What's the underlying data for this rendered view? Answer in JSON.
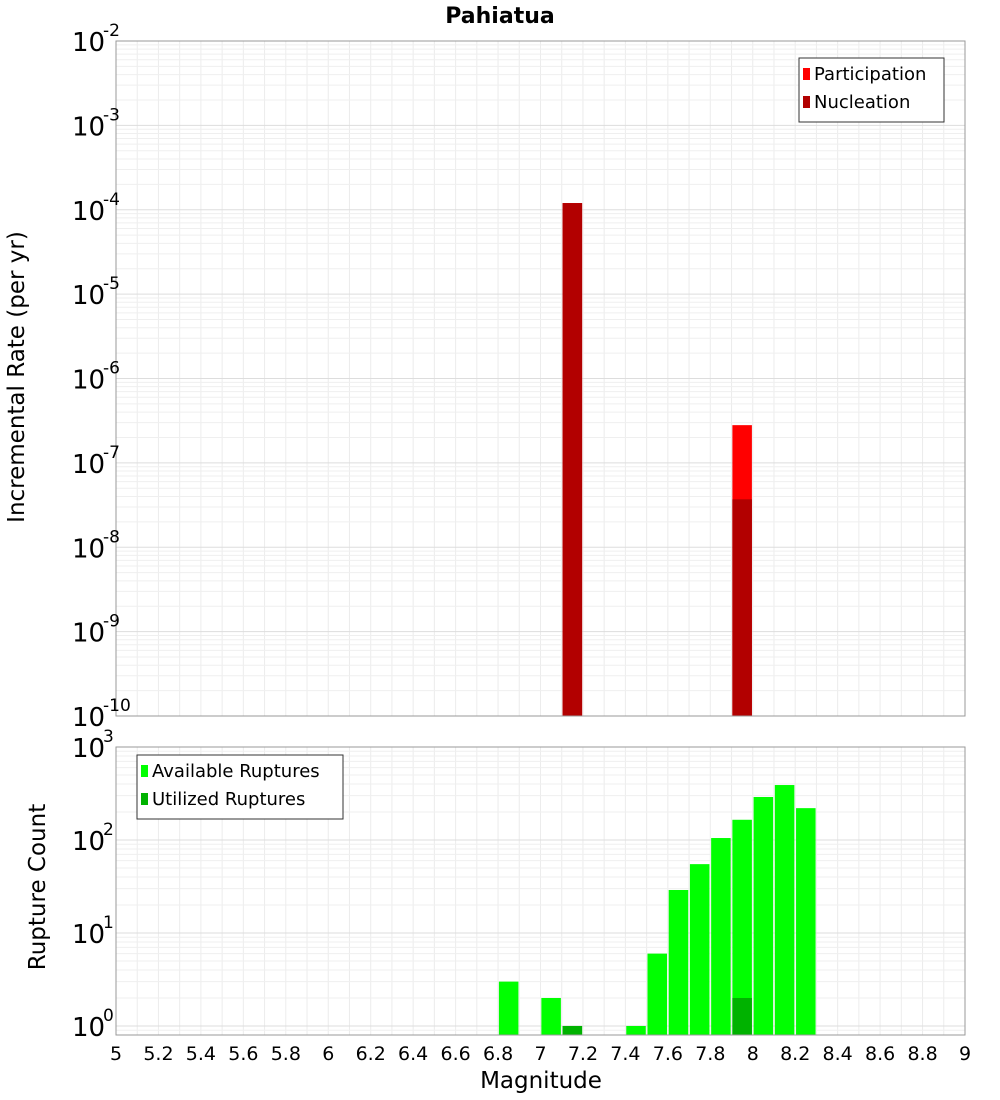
{
  "chart_data": [
    {
      "type": "bar",
      "title": "Pahiatua",
      "ylabel": "Incremental Rate (per yr)",
      "yscale": "log",
      "ylim": [
        1e-10,
        0.01
      ],
      "xlim": [
        5,
        9
      ],
      "grid": true,
      "legend_position": "top-right",
      "series": [
        {
          "name": "Participation",
          "color": "#ff0000",
          "points": [
            {
              "x": 7.15,
              "y": 0.00012
            },
            {
              "x": 7.95,
              "y": 2.8e-07
            }
          ]
        },
        {
          "name": "Nucleation",
          "color": "#b20000",
          "points": [
            {
              "x": 7.15,
              "y": 0.00012
            },
            {
              "x": 7.95,
              "y": 3.7e-08
            }
          ]
        }
      ]
    },
    {
      "type": "bar",
      "title": "",
      "ylabel": "Rupture Count",
      "xlabel": "Magnitude",
      "yscale": "log",
      "ylim": [
        0.8,
        1000
      ],
      "xlim": [
        5,
        9
      ],
      "xticks": [
        "5",
        "5.2",
        "5.4",
        "5.6",
        "5.8",
        "6",
        "6.2",
        "6.4",
        "6.6",
        "6.8",
        "7",
        "7.2",
        "7.4",
        "7.6",
        "7.8",
        "8",
        "8.2",
        "8.4",
        "8.6",
        "8.8",
        "9"
      ],
      "grid": true,
      "legend_position": "top-left",
      "series": [
        {
          "name": "Available Ruptures",
          "color": "#00ff00",
          "points": [
            {
              "x": 6.85,
              "y": 3
            },
            {
              "x": 7.05,
              "y": 2
            },
            {
              "x": 7.15,
              "y": 1
            },
            {
              "x": 7.45,
              "y": 1
            },
            {
              "x": 7.55,
              "y": 6
            },
            {
              "x": 7.65,
              "y": 29
            },
            {
              "x": 7.75,
              "y": 55
            },
            {
              "x": 7.85,
              "y": 105
            },
            {
              "x": 7.95,
              "y": 165
            },
            {
              "x": 8.05,
              "y": 290
            },
            {
              "x": 8.15,
              "y": 390
            },
            {
              "x": 8.25,
              "y": 220
            }
          ]
        },
        {
          "name": "Utilized Ruptures",
          "color": "#00b200",
          "points": [
            {
              "x": 7.15,
              "y": 1
            },
            {
              "x": 7.95,
              "y": 2
            }
          ]
        }
      ]
    }
  ]
}
